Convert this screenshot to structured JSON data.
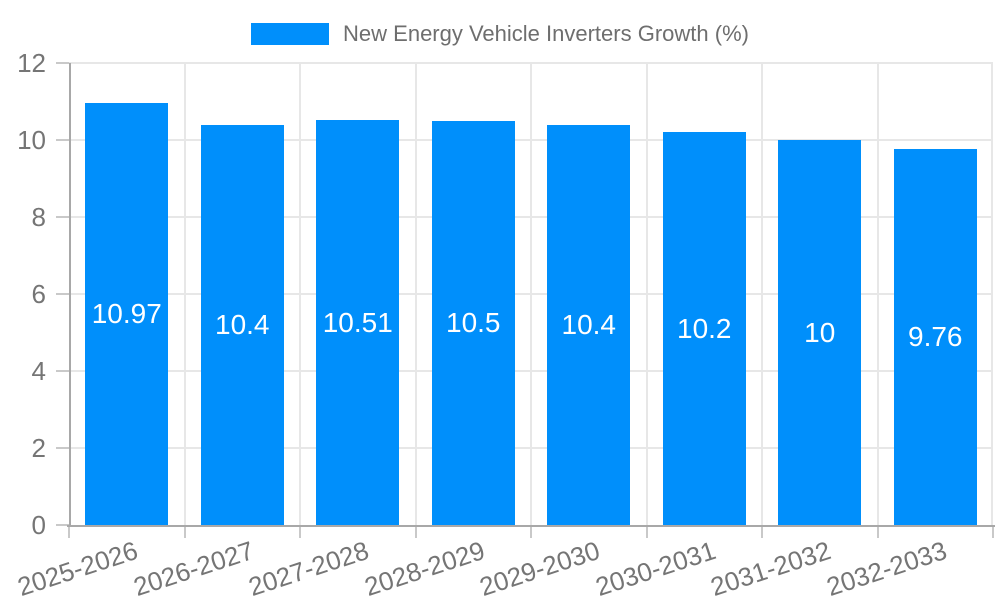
{
  "legend": {
    "label": "New Energy Vehicle Inverters Growth (%)"
  },
  "chart_data": {
    "type": "bar",
    "title": "",
    "categories": [
      "2025-2026",
      "2026-2027",
      "2027-2028",
      "2028-2029",
      "2029-2030",
      "2030-2031",
      "2031-2032",
      "2032-2033"
    ],
    "series": [
      {
        "name": "New Energy Vehicle Inverters Growth (%)",
        "values": [
          10.97,
          10.4,
          10.51,
          10.5,
          10.4,
          10.2,
          10,
          9.76
        ]
      }
    ],
    "value_labels": [
      "10.97",
      "10.4",
      "10.51",
      "10.5",
      "10.4",
      "10.2",
      "10",
      "9.76"
    ],
    "xlabel": "",
    "ylabel": "",
    "ylim": [
      0,
      12
    ],
    "yticks": [
      0,
      2,
      4,
      6,
      8,
      10,
      12
    ],
    "grid": true,
    "legend_position": "top",
    "value_label_position": "inside-center",
    "x_label_rotation_deg": -18
  },
  "colors": {
    "bar": "#008FFB",
    "grid": "#E7E7E7",
    "axis": "#A8A8A8",
    "tick_mark": "#C9C9C9",
    "tick_text": "#757575",
    "legend_text": "#6E6E6E",
    "value_text": "#FFFFFF",
    "background": "#FFFFFF"
  }
}
